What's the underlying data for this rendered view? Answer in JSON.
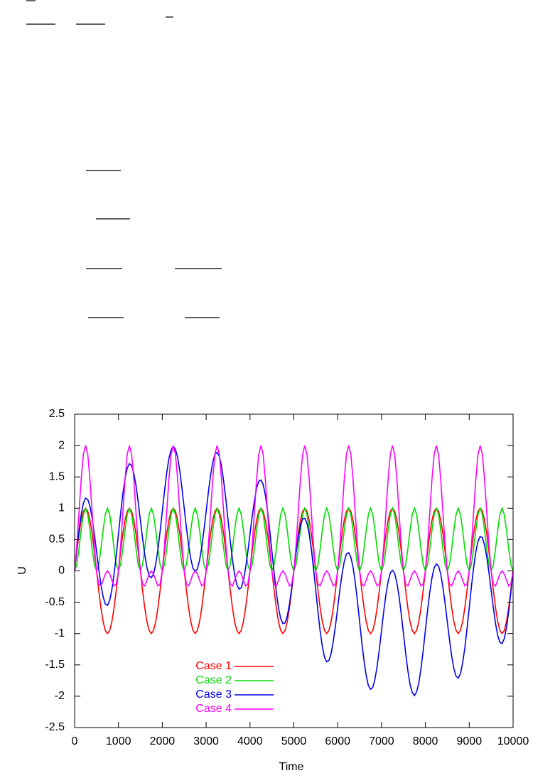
{
  "chart_data": {
    "type": "line",
    "xlabel": "Time",
    "ylabel": "U",
    "xlim": [
      0,
      10000
    ],
    "ylim": [
      -2.5,
      2.5
    ],
    "xticks": [
      0,
      1000,
      2000,
      3000,
      4000,
      5000,
      6000,
      7000,
      8000,
      9000,
      10000
    ],
    "yticks": [
      -2.5,
      -2,
      -1.5,
      -1,
      -0.5,
      0,
      0.5,
      1,
      1.5,
      2,
      2.5
    ],
    "grid": false,
    "legend": "lower left",
    "x": [
      0,
      50,
      100,
      150,
      200,
      250,
      300,
      350,
      400,
      450,
      500,
      550,
      600,
      650,
      700,
      750,
      800,
      850,
      900,
      950,
      1000,
      1050,
      1100,
      1150,
      1200,
      1250,
      1300,
      1350,
      1400,
      1450,
      1500,
      1550,
      1600,
      1650,
      1700,
      1750,
      1800,
      1850,
      1900,
      1950,
      2000,
      2050,
      2100,
      2150,
      2200,
      2250,
      2300,
      2350,
      2400,
      2450,
      2500,
      2550,
      2600,
      2650,
      2700,
      2750,
      2800,
      2850,
      2900,
      2950,
      3000,
      3050,
      3100,
      3150,
      3200,
      3250,
      3300,
      3350,
      3400,
      3450,
      3500,
      3550,
      3600,
      3650,
      3700,
      3750,
      3800,
      3850,
      3900,
      3950,
      4000,
      4050,
      4100,
      4150,
      4200,
      4250,
      4300,
      4350,
      4400,
      4450,
      4500,
      4550,
      4600,
      4650,
      4700,
      4750,
      4800,
      4850,
      4900,
      4950,
      5000,
      5050,
      5100,
      5150,
      5200,
      5250,
      5300,
      5350,
      5400,
      5450,
      5500,
      5550,
      5600,
      5650,
      5700,
      5750,
      5800,
      5850,
      5900,
      5950,
      6000,
      6050,
      6100,
      6150,
      6200,
      6250,
      6300,
      6350,
      6400,
      6450,
      6500,
      6550,
      6600,
      6650,
      6700,
      6750,
      6800,
      6850,
      6900,
      6950,
      7000,
      7050,
      7100,
      7150,
      7200,
      7250,
      7300,
      7350,
      7400,
      7450,
      7500,
      7550,
      7600,
      7650,
      7700,
      7750,
      7800,
      7850,
      7900,
      7950,
      8000,
      8050,
      8100,
      8150,
      8200,
      8250,
      8300,
      8350,
      8400,
      8450,
      8500,
      8550,
      8600,
      8650,
      8700,
      8750,
      8800,
      8850,
      8900,
      8950,
      9000,
      9050,
      9100,
      9150,
      9200,
      9250,
      9300,
      9350,
      9400,
      9450,
      9500,
      9550,
      9600,
      9650,
      9700,
      9750,
      9800,
      9850,
      9900,
      9950,
      10000
    ],
    "series": [
      {
        "name": "Case 1",
        "color": "#ff0000",
        "values": [
          0,
          0.31,
          0.59,
          0.81,
          0.95,
          1,
          0.95,
          0.81,
          0.59,
          0.31,
          0,
          -0.31,
          -0.59,
          -0.81,
          -0.95,
          -1,
          -0.95,
          -0.81,
          -0.59,
          -0.31,
          0,
          0.31,
          0.59,
          0.81,
          0.95,
          1,
          0.95,
          0.81,
          0.59,
          0.31,
          0,
          -0.31,
          -0.59,
          -0.81,
          -0.95,
          -1,
          -0.95,
          -0.81,
          -0.59,
          -0.31,
          0,
          0.31,
          0.59,
          0.81,
          0.95,
          1,
          0.95,
          0.81,
          0.59,
          0.31,
          0,
          -0.31,
          -0.59,
          -0.81,
          -0.95,
          -1,
          -0.95,
          -0.81,
          -0.59,
          -0.31,
          0,
          0.31,
          0.59,
          0.81,
          0.95,
          1,
          0.95,
          0.81,
          0.59,
          0.31,
          0,
          -0.31,
          -0.59,
          -0.81,
          -0.95,
          -1,
          -0.95,
          -0.81,
          -0.59,
          -0.31,
          0,
          0.31,
          0.59,
          0.81,
          0.95,
          1,
          0.95,
          0.81,
          0.59,
          0.31,
          0,
          -0.31,
          -0.59,
          -0.81,
          -0.95,
          -1,
          -0.95,
          -0.81,
          -0.59,
          -0.31,
          0,
          0.31,
          0.59,
          0.81,
          0.95,
          1,
          0.95,
          0.81,
          0.59,
          0.31,
          0,
          -0.31,
          -0.59,
          -0.81,
          -0.95,
          -1,
          -0.95,
          -0.81,
          -0.59,
          -0.31,
          0,
          0.31,
          0.59,
          0.81,
          0.95,
          1,
          0.95,
          0.81,
          0.59,
          0.31,
          0,
          -0.31,
          -0.59,
          -0.81,
          -0.95,
          -1,
          -0.95,
          -0.81,
          -0.59,
          -0.31,
          0,
          0.31,
          0.59,
          0.81,
          0.95,
          1,
          0.95,
          0.81,
          0.59,
          0.31,
          0,
          -0.31,
          -0.59,
          -0.81,
          -0.95,
          -1,
          -0.95,
          -0.81,
          -0.59,
          -0.31,
          0,
          0.31,
          0.59,
          0.81,
          0.95,
          1,
          0.95,
          0.81,
          0.59,
          0.31,
          0,
          -0.31,
          -0.59,
          -0.81,
          -0.95,
          -1,
          -0.95,
          -0.81,
          -0.59,
          -0.31,
          0,
          0.31,
          0.59,
          0.81,
          0.95,
          1,
          0.95,
          0.81,
          0.59,
          0.31,
          0,
          -0.31,
          -0.59,
          -0.81,
          -0.95,
          -1,
          -0.95,
          -0.81,
          -0.59,
          -0.31,
          0
        ]
      },
      {
        "name": "Case 2",
        "color": "#00dd00",
        "values": [
          0,
          0.1,
          0.35,
          0.65,
          0.9,
          1,
          0.9,
          0.65,
          0.35,
          0.1,
          0,
          0.1,
          0.35,
          0.65,
          0.9,
          1,
          0.9,
          0.65,
          0.35,
          0.1,
          0,
          0.1,
          0.35,
          0.65,
          0.9,
          1,
          0.9,
          0.65,
          0.35,
          0.1,
          0,
          0.1,
          0.35,
          0.65,
          0.9,
          1,
          0.9,
          0.65,
          0.35,
          0.1,
          0,
          0.1,
          0.35,
          0.65,
          0.9,
          1,
          0.9,
          0.65,
          0.35,
          0.1,
          0,
          0.1,
          0.35,
          0.65,
          0.9,
          1,
          0.9,
          0.65,
          0.35,
          0.1,
          0,
          0.1,
          0.35,
          0.65,
          0.9,
          1,
          0.9,
          0.65,
          0.35,
          0.1,
          0,
          0.1,
          0.35,
          0.65,
          0.9,
          1,
          0.9,
          0.65,
          0.35,
          0.1,
          0,
          0.1,
          0.35,
          0.65,
          0.9,
          1,
          0.9,
          0.65,
          0.35,
          0.1,
          0,
          0.1,
          0.35,
          0.65,
          0.9,
          1,
          0.9,
          0.65,
          0.35,
          0.1,
          0,
          0.1,
          0.35,
          0.65,
          0.9,
          1,
          0.9,
          0.65,
          0.35,
          0.1,
          0,
          0.1,
          0.35,
          0.65,
          0.9,
          1,
          0.9,
          0.65,
          0.35,
          0.1,
          0,
          0.1,
          0.35,
          0.65,
          0.9,
          1,
          0.9,
          0.65,
          0.35,
          0.1,
          0,
          0.1,
          0.35,
          0.65,
          0.9,
          1,
          0.9,
          0.65,
          0.35,
          0.1,
          0,
          0.1,
          0.35,
          0.65,
          0.9,
          1,
          0.9,
          0.65,
          0.35,
          0.1,
          0,
          0.1,
          0.35,
          0.65,
          0.9,
          1,
          0.9,
          0.65,
          0.35,
          0.1,
          0,
          0.1,
          0.35,
          0.65,
          0.9,
          1,
          0.9,
          0.65,
          0.35,
          0.1,
          0,
          0.1,
          0.35,
          0.65,
          0.9,
          1,
          0.9,
          0.65,
          0.35,
          0.1,
          0,
          0.1,
          0.35,
          0.65,
          0.9,
          1,
          0.9,
          0.65,
          0.35,
          0.1,
          0,
          0.1,
          0.35,
          0.65,
          0.9,
          1,
          0.9,
          0.65,
          0.35,
          0.1,
          0
        ]
      },
      {
        "name": "Case 3",
        "color": "#0000ee",
        "values": [
          0,
          0.34,
          0.65,
          0.9,
          1.08,
          1.16,
          1.14,
          1.03,
          0.84,
          0.59,
          0.31,
          0.03,
          -0.22,
          -0.41,
          -0.53,
          -0.55,
          -0.47,
          -0.3,
          -0.05,
          0.25,
          0.59,
          0.92,
          1.23,
          1.47,
          1.64,
          1.71,
          1.68,
          1.56,
          1.36,
          1.1,
          0.81,
          0.52,
          0.26,
          0.05,
          -0.08,
          -0.11,
          -0.05,
          0.11,
          0.34,
          0.63,
          0.95,
          1.27,
          1.56,
          1.79,
          1.93,
          1.99,
          1.94,
          1.81,
          1.59,
          1.31,
          1,
          0.69,
          0.41,
          0.19,
          0.04,
          -0.01,
          0.03,
          0.17,
          0.38,
          0.65,
          0.95,
          1.25,
          1.52,
          1.73,
          1.86,
          1.89,
          1.83,
          1.67,
          1.43,
          1.14,
          0.81,
          0.48,
          0.18,
          -0.06,
          -0.22,
          -0.29,
          -0.27,
          -0.15,
          0.05,
          0.3,
          0.59,
          0.87,
          1.12,
          1.32,
          1.43,
          1.45,
          1.38,
          1.21,
          0.96,
          0.65,
          0.31,
          -0.03,
          -0.34,
          -0.59,
          -0.76,
          -0.84,
          -0.83,
          -0.72,
          -0.53,
          -0.28,
          0,
          0.28,
          0.53,
          0.72,
          0.83,
          0.84,
          0.76,
          0.59,
          0.34,
          0.03,
          -0.31,
          -0.65,
          -0.96,
          -1.21,
          -1.38,
          -1.45,
          -1.43,
          -1.32,
          -1.12,
          -0.87,
          -0.59,
          -0.3,
          -0.05,
          0.15,
          0.27,
          0.29,
          0.22,
          0.06,
          -0.18,
          -0.48,
          -0.81,
          -1.14,
          -1.43,
          -1.67,
          -1.83,
          -1.89,
          -1.86,
          -1.73,
          -1.52,
          -1.25,
          -0.95,
          -0.65,
          -0.38,
          -0.17,
          -0.03,
          0.01,
          -0.04,
          -0.19,
          -0.41,
          -0.69,
          -1,
          -1.31,
          -1.59,
          -1.81,
          -1.94,
          -1.99,
          -1.93,
          -1.79,
          -1.56,
          -1.27,
          -0.95,
          -0.63,
          -0.34,
          -0.11,
          0.05,
          0.11,
          0.08,
          -0.05,
          -0.26,
          -0.52,
          -0.81,
          -1.1,
          -1.36,
          -1.56,
          -1.68,
          -1.71,
          -1.64,
          -1.47,
          -1.23,
          -0.92,
          -0.59,
          -0.25,
          0.05,
          0.3,
          0.47,
          0.55,
          0.53,
          0.41,
          0.22,
          -0.03,
          -0.31,
          -0.59,
          -0.84,
          -1.03,
          -1.14,
          -1.16,
          -1.08,
          -0.9,
          -0.65,
          -0.34,
          0
        ]
      },
      {
        "name": "Case 4",
        "color": "#ff00ff",
        "values": [
          0,
          0.4,
          0.93,
          1.46,
          1.86,
          2,
          1.86,
          1.46,
          0.93,
          0.4,
          0,
          -0.21,
          -0.24,
          -0.15,
          -0.05,
          0,
          -0.05,
          -0.15,
          -0.24,
          -0.21,
          0,
          0.4,
          0.93,
          1.46,
          1.86,
          2,
          1.86,
          1.46,
          0.93,
          0.4,
          0,
          -0.21,
          -0.24,
          -0.15,
          -0.05,
          0,
          -0.05,
          -0.15,
          -0.24,
          -0.21,
          0,
          0.4,
          0.93,
          1.46,
          1.86,
          2,
          1.86,
          1.46,
          0.93,
          0.4,
          0,
          -0.21,
          -0.24,
          -0.15,
          -0.05,
          0,
          -0.05,
          -0.15,
          -0.24,
          -0.21,
          0,
          0.4,
          0.93,
          1.46,
          1.86,
          2,
          1.86,
          1.46,
          0.93,
          0.4,
          0,
          -0.21,
          -0.24,
          -0.15,
          -0.05,
          0,
          -0.05,
          -0.15,
          -0.24,
          -0.21,
          0,
          0.4,
          0.93,
          1.46,
          1.86,
          2,
          1.86,
          1.46,
          0.93,
          0.4,
          0,
          -0.21,
          -0.24,
          -0.15,
          -0.05,
          0,
          -0.05,
          -0.15,
          -0.24,
          -0.21,
          0,
          0.4,
          0.93,
          1.46,
          1.86,
          2,
          1.86,
          1.46,
          0.93,
          0.4,
          0,
          -0.21,
          -0.24,
          -0.15,
          -0.05,
          0,
          -0.05,
          -0.15,
          -0.24,
          -0.21,
          0,
          0.4,
          0.93,
          1.46,
          1.86,
          2,
          1.86,
          1.46,
          0.93,
          0.4,
          0,
          -0.21,
          -0.24,
          -0.15,
          -0.05,
          0,
          -0.05,
          -0.15,
          -0.24,
          -0.21,
          0,
          0.4,
          0.93,
          1.46,
          1.86,
          2,
          1.86,
          1.46,
          0.93,
          0.4,
          0,
          -0.21,
          -0.24,
          -0.15,
          -0.05,
          0,
          -0.05,
          -0.15,
          -0.24,
          -0.21,
          0,
          0.4,
          0.93,
          1.46,
          1.86,
          2,
          1.86,
          1.46,
          0.93,
          0.4,
          0,
          -0.21,
          -0.24,
          -0.15,
          -0.05,
          0,
          -0.05,
          -0.15,
          -0.24,
          -0.21,
          0,
          0.4,
          0.93,
          1.46,
          1.86,
          2,
          1.86,
          1.46,
          0.93,
          0.4,
          0,
          -0.21,
          -0.24,
          -0.15,
          -0.05,
          0,
          -0.05,
          -0.15,
          -0.24,
          -0.21,
          0
        ]
      }
    ]
  }
}
